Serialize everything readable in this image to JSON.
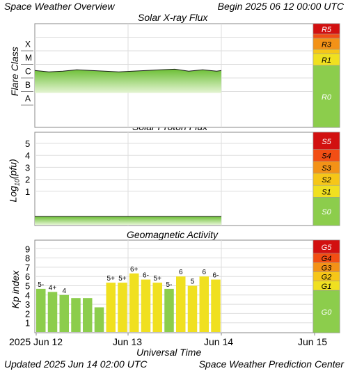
{
  "header": {
    "title": "Space Weather Overview",
    "begin": "Begin 2025 06 12 00:00 UTC"
  },
  "footer": {
    "updated": "Updated 2025 Jun 14 02:00 UTC",
    "center": "Space Weather Prediction Center"
  },
  "x_axis": {
    "label": "Universal Time",
    "ticks": [
      "2025 Jun 12",
      "Jun 13",
      "Jun 14",
      "Jun 15"
    ]
  },
  "colors": {
    "scale_green": "#8ccd4c",
    "scale_yellow": "#f0e020",
    "scale_gold": "#f6c618",
    "scale_orange": "#f39217",
    "scale_red_orange": "#f24e14",
    "scale_red": "#d21010",
    "kp_green": "#8ccd4c",
    "kp_yellow": "#f0e020"
  },
  "chart_data": [
    {
      "type": "line",
      "title": "Solar X-ray Flux",
      "ylabel": "Flare Class",
      "y_classes": [
        "A",
        "B",
        "C",
        "M",
        "X"
      ],
      "scale_labels": [
        "R5",
        "R3",
        "R1",
        "R0"
      ],
      "x_days": [
        0.0,
        0.15,
        0.3,
        0.45,
        0.6,
        0.75,
        0.9,
        1.05,
        1.2,
        1.35,
        1.5,
        1.65,
        1.8,
        1.95,
        2.0
      ],
      "flux_class_level": [
        2.55,
        2.45,
        2.5,
        2.6,
        2.55,
        2.5,
        2.45,
        2.5,
        2.55,
        2.6,
        2.65,
        2.5,
        2.6,
        2.5,
        2.55
      ]
    },
    {
      "type": "line",
      "title": "Solar Proton Flux",
      "ylabel": "Log10(pfu)",
      "yticks": [
        1,
        2,
        3,
        4,
        5
      ],
      "scale_labels": [
        "S5",
        "S4",
        "S3",
        "S2",
        "S1",
        "S0"
      ],
      "x_days": [
        0.0,
        0.5,
        1.0,
        1.5,
        2.0
      ],
      "log10_pfu": [
        -1.1,
        -1.1,
        -1.1,
        -1.1,
        -1.1
      ]
    },
    {
      "type": "bar",
      "title": "Geomagnetic Activity",
      "ylabel": "Kp index",
      "yticks": [
        1,
        2,
        3,
        4,
        5,
        6,
        7,
        8,
        9
      ],
      "ylim": [
        0,
        10
      ],
      "scale_labels": [
        "G5",
        "G4",
        "G3",
        "G2",
        "G1",
        "G0"
      ],
      "bars": [
        {
          "value": 4.67,
          "label": "5-"
        },
        {
          "value": 4.33,
          "label": "4+"
        },
        {
          "value": 4.0,
          "label": "4"
        },
        {
          "value": 3.67,
          "label": ""
        },
        {
          "value": 3.67,
          "label": ""
        },
        {
          "value": 2.67,
          "label": ""
        },
        {
          "value": 5.33,
          "label": "5+"
        },
        {
          "value": 5.33,
          "label": "5+"
        },
        {
          "value": 6.33,
          "label": "6+"
        },
        {
          "value": 5.67,
          "label": "6-"
        },
        {
          "value": 5.33,
          "label": "5+"
        },
        {
          "value": 4.67,
          "label": "5-"
        },
        {
          "value": 6.0,
          "label": "6"
        },
        {
          "value": 5.0,
          "label": "5"
        },
        {
          "value": 6.0,
          "label": "6"
        },
        {
          "value": 5.67,
          "label": "6-"
        }
      ]
    }
  ]
}
